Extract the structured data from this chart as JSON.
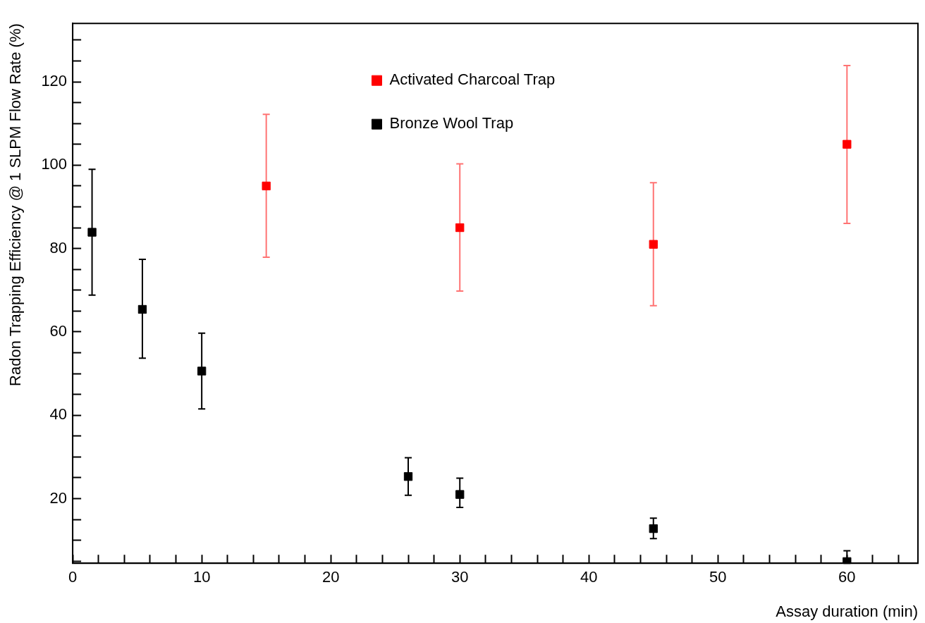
{
  "chart_data": {
    "type": "scatter",
    "xlabel": "Assay duration (min)",
    "ylabel": "Radon Trapping Efficiency @ 1 SLPM Flow Rate (%)",
    "series": [
      {
        "name": "Activated Charcoal Trap",
        "color": "#ff0000",
        "x": [
          15,
          30,
          45,
          60
        ],
        "values": [
          95,
          85,
          81,
          105
        ],
        "errors": [
          [
            77.9,
            112.2
          ],
          [
            69.8,
            100.3
          ],
          [
            66.3,
            95.8
          ],
          [
            86,
            123.9
          ]
        ]
      },
      {
        "name": "Bronze Wool Trap",
        "color": "#000000",
        "x": [
          1.5,
          5.4,
          10,
          26,
          30,
          45,
          60
        ],
        "values": [
          83.9,
          65.4,
          50.6,
          25.3,
          21,
          12.8,
          4.9
        ],
        "errors": [
          [
            68.8,
            99
          ],
          [
            53.7,
            77.4
          ],
          [
            41.5,
            59.7
          ],
          [
            20.8,
            29.8
          ],
          [
            17.9,
            24.9
          ],
          [
            10.4,
            15.3
          ],
          [
            4.5,
            7.5
          ]
        ]
      }
    ],
    "xlim": [
      0,
      65.5
    ],
    "ylim": [
      4.5,
      134
    ],
    "xticks": [
      0,
      {
        "value": 2,
        "label": null
      },
      {
        "value": 4,
        "label": null
      },
      {
        "value": 6,
        "label": null
      },
      {
        "value": 8,
        "label": null
      },
      10,
      {
        "value": 12,
        "label": null
      },
      {
        "value": 14,
        "label": null
      },
      {
        "value": 16,
        "label": null
      },
      {
        "value": 18,
        "label": null
      },
      20,
      {
        "value": 22,
        "label": null
      },
      {
        "value": 24,
        "label": null
      },
      {
        "value": 26,
        "label": null
      },
      {
        "value": 28,
        "label": null
      },
      30,
      {
        "value": 32,
        "label": null
      },
      {
        "value": 34,
        "label": null
      },
      {
        "value": 36,
        "label": null
      },
      {
        "value": 38,
        "label": null
      },
      40,
      {
        "value": 42,
        "label": null
      },
      {
        "value": 44,
        "label": null
      },
      {
        "value": 46,
        "label": null
      },
      {
        "value": 48,
        "label": null
      },
      50,
      {
        "value": 52,
        "label": null
      },
      {
        "value": 54,
        "label": null
      },
      {
        "value": 56,
        "label": null
      },
      {
        "value": 58,
        "label": null
      },
      60,
      {
        "value": 62,
        "label": null
      },
      {
        "value": 64,
        "label": null
      }
    ],
    "yticks": [
      {
        "value": 5,
        "label": null
      },
      {
        "value": 10,
        "label": null
      },
      {
        "value": 15,
        "label": null
      },
      20,
      {
        "value": 25,
        "label": null
      },
      {
        "value": 30,
        "label": null
      },
      {
        "value": 35,
        "label": null
      },
      40,
      {
        "value": 45,
        "label": null
      },
      {
        "value": 50,
        "label": null
      },
      {
        "value": 55,
        "label": null
      },
      60,
      {
        "value": 65,
        "label": null
      },
      {
        "value": 70,
        "label": null
      },
      {
        "value": 75,
        "label": null
      },
      80,
      {
        "value": 85,
        "label": null
      },
      {
        "value": 90,
        "label": null
      },
      {
        "value": 95,
        "label": null
      },
      100,
      {
        "value": 105,
        "label": null
      },
      {
        "value": 110,
        "label": null
      },
      {
        "value": 115,
        "label": null
      },
      120,
      {
        "value": 125,
        "label": null
      },
      {
        "value": 130,
        "label": null
      }
    ],
    "grid": false,
    "legend": "top",
    "marker": "square"
  }
}
